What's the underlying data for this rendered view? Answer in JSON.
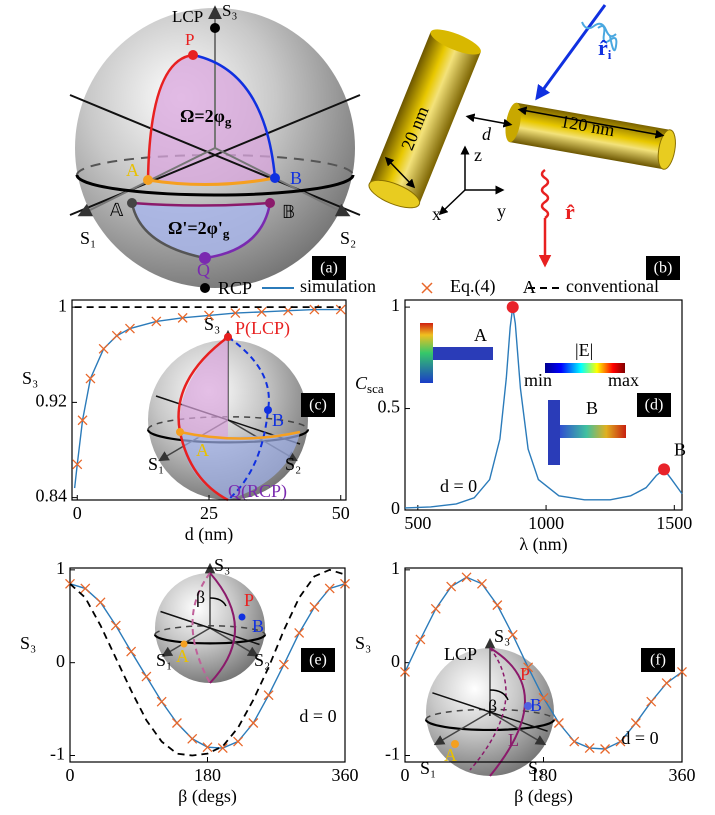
{
  "panel_a": {
    "lcp": "LCP",
    "s3": "S₃",
    "p": "P",
    "omega": "Ω=2φ",
    "omega_sub": "g",
    "a": "A",
    "b": "B",
    "a2": "𝔸",
    "b2": "𝔹",
    "omega2": "Ω'=2φ'",
    "omega2_sub": "g",
    "q": "Q",
    "s1": "S₁",
    "s2": "S₂",
    "rcp": "RCP",
    "panel_label": "(a)"
  },
  "panel_b": {
    "diameter": "20 nm",
    "gap": "d",
    "length": "120 nm",
    "z": "z",
    "x": "x",
    "y": "y",
    "incident": "r̂",
    "incident_sub": "i",
    "scattered": "r̂",
    "panel_label": "(b)"
  },
  "chart_data": [
    {
      "type": "line",
      "panel_label": "(c)",
      "x_label": "d (nm)",
      "y_label": "S₃",
      "legend": "above",
      "xlim": [
        -1,
        51
      ],
      "ylim": [
        0.838,
        1.006
      ],
      "xticks": [
        0,
        25,
        50
      ],
      "yticks": [
        0.84,
        0.92,
        1
      ],
      "x": [
        -0.5,
        0,
        1,
        2.5,
        5,
        7.5,
        10,
        15,
        20,
        25,
        30,
        35,
        40,
        45,
        50
      ],
      "series": [
        {
          "name": "simulation",
          "color": "#2b7bba",
          "style": "line",
          "values": [
            0.848,
            0.868,
            0.905,
            0.94,
            0.965,
            0.976,
            0.982,
            0.988,
            0.991,
            0.993,
            0.995,
            0.996,
            0.997,
            0.998,
            0.998
          ]
        },
        {
          "name": "Eq.(4)",
          "color": "#e8672a",
          "style": "cross",
          "values": [
            null,
            0.868,
            0.905,
            0.94,
            0.965,
            0.976,
            0.982,
            0.988,
            0.991,
            0.993,
            0.995,
            0.996,
            0.997,
            0.998,
            0.998
          ]
        },
        {
          "name": "conventional",
          "color": "#000000",
          "style": "dashed",
          "values": [
            1,
            1,
            1,
            1,
            1,
            1,
            1,
            1,
            1,
            1,
            1,
            1,
            1,
            1,
            1
          ]
        }
      ],
      "inset": {
        "s3": "S₃",
        "p": "P(LCP)",
        "b": "B",
        "a": "A",
        "s1": "S₁",
        "s2": "S₂",
        "q": "Q(RCP)"
      }
    },
    {
      "type": "line",
      "panel_label": "(d)",
      "x_label": "λ (nm)",
      "y_label": "C",
      "y_label_sub": "sca",
      "note": "d = 0",
      "xlim": [
        450,
        1530
      ],
      "ylim": [
        0,
        1.035
      ],
      "xticks": [
        500,
        1000,
        1500
      ],
      "yticks": [
        0,
        0.5,
        1
      ],
      "x": [
        450,
        550,
        650,
        720,
        780,
        820,
        845,
        860,
        870,
        880,
        900,
        930,
        970,
        1050,
        1150,
        1250,
        1330,
        1390,
        1430,
        1460,
        1490,
        1530
      ],
      "series": [
        {
          "color": "#2b7bba",
          "style": "line",
          "values": [
            0.01,
            0.015,
            0.03,
            0.06,
            0.15,
            0.35,
            0.65,
            0.9,
            1.0,
            0.92,
            0.6,
            0.3,
            0.15,
            0.07,
            0.05,
            0.05,
            0.07,
            0.11,
            0.17,
            0.2,
            0.15,
            0.08
          ]
        }
      ],
      "annotations": [
        {
          "label": "A",
          "x": 870,
          "y": 1.0,
          "color": "#e8232a"
        },
        {
          "label": "B",
          "x": 1460,
          "y": 0.2,
          "color": "#e8232a"
        }
      ],
      "inset": {
        "a": "A",
        "e": "|E|",
        "min": "min",
        "max": "max",
        "b": "B"
      }
    },
    {
      "type": "line",
      "panel_label": "(e)",
      "x_label": "β  (degs)",
      "y_label": "S₃",
      "note": "d = 0",
      "xlim": [
        0,
        360
      ],
      "ylim": [
        -1.07,
        1.02
      ],
      "xticks": [
        0,
        180,
        360
      ],
      "yticks": [
        -1,
        0,
        1
      ],
      "x": [
        0,
        20,
        40,
        60,
        80,
        100,
        120,
        140,
        160,
        180,
        200,
        220,
        240,
        260,
        280,
        300,
        320,
        340,
        360
      ],
      "series": [
        {
          "name": "simulation",
          "color": "#2b7bba",
          "style": "line",
          "values": [
            0.85,
            0.8,
            0.65,
            0.4,
            0.12,
            -0.15,
            -0.42,
            -0.65,
            -0.82,
            -0.91,
            -0.92,
            -0.85,
            -0.65,
            -0.35,
            -0.02,
            0.32,
            0.6,
            0.8,
            0.85
          ]
        },
        {
          "name": "Eq.(4)",
          "color": "#e8672a",
          "style": "cross",
          "values": [
            0.85,
            0.8,
            0.65,
            0.4,
            0.12,
            -0.15,
            -0.42,
            -0.65,
            -0.82,
            -0.91,
            -0.92,
            -0.85,
            -0.65,
            -0.35,
            -0.02,
            0.32,
            0.6,
            0.8,
            0.85
          ]
        },
        {
          "name": "conventional",
          "color": "#000000",
          "style": "dashed",
          "values": [
            0.85,
            0.7,
            0.4,
            0.05,
            -0.3,
            -0.62,
            -0.85,
            -0.98,
            -1.0,
            -0.98,
            -0.9,
            -0.7,
            -0.4,
            -0.05,
            0.35,
            0.7,
            0.93,
            1.0,
            0.95
          ]
        }
      ],
      "inset": {
        "s3": "S₃",
        "beta": "β",
        "p": "P",
        "b": "B",
        "a": "A",
        "s1": "S₁",
        "s2": "S₂"
      }
    },
    {
      "type": "line",
      "panel_label": "(f)",
      "x_label": "β  (degs)",
      "y_label": "S₃",
      "note": "d = 0",
      "xlim": [
        0,
        360
      ],
      "ylim": [
        -1.07,
        1.02
      ],
      "xticks": [
        0,
        180,
        360
      ],
      "yticks": [
        -1,
        0,
        1
      ],
      "x": [
        0,
        20,
        40,
        60,
        80,
        100,
        120,
        140,
        160,
        180,
        200,
        220,
        240,
        260,
        280,
        300,
        320,
        340,
        360
      ],
      "series": [
        {
          "name": "simulation",
          "color": "#2b7bba",
          "style": "line",
          "values": [
            -0.1,
            0.25,
            0.58,
            0.82,
            0.92,
            0.85,
            0.62,
            0.3,
            -0.05,
            -0.38,
            -0.65,
            -0.85,
            -0.92,
            -0.93,
            -0.85,
            -0.65,
            -0.42,
            -0.22,
            -0.1
          ]
        },
        {
          "name": "Eq.(4)",
          "color": "#e8672a",
          "style": "cross",
          "values": [
            -0.1,
            0.25,
            0.58,
            0.82,
            0.92,
            0.85,
            0.62,
            0.3,
            -0.05,
            -0.38,
            -0.65,
            -0.85,
            -0.92,
            -0.93,
            -0.85,
            -0.65,
            -0.42,
            -0.22,
            -0.1
          ]
        }
      ],
      "inset": {
        "s3": "S₃",
        "lcp": "LCP",
        "p": "P",
        "beta": "β",
        "b": "B",
        "a": "A",
        "s1": "S₁",
        "s2": "S₂",
        "l": "L"
      }
    }
  ]
}
